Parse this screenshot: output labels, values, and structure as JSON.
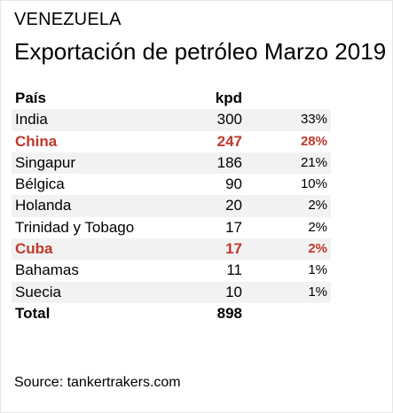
{
  "header": {
    "country": "VENEZUELA",
    "title": "Exportación de petróleo Marzo 2019"
  },
  "table": {
    "columns": [
      "País",
      "kpd",
      ""
    ],
    "rows": [
      {
        "country": "India",
        "kpd": "300",
        "share": "33%",
        "highlight": false
      },
      {
        "country": "China",
        "kpd": "247",
        "share": "28%",
        "highlight": true
      },
      {
        "country": "Singapur",
        "kpd": "186",
        "share": "21%",
        "highlight": false
      },
      {
        "country": "Bélgica",
        "kpd": "90",
        "share": "10%",
        "highlight": false
      },
      {
        "country": "Holanda",
        "kpd": "20",
        "share": "2%",
        "highlight": false
      },
      {
        "country": "Trinidad y Tobago",
        "kpd": "17",
        "share": "2%",
        "highlight": false
      },
      {
        "country": "Cuba",
        "kpd": "17",
        "share": "2%",
        "highlight": true
      },
      {
        "country": "Bahamas",
        "kpd": "11",
        "share": "1%",
        "highlight": false
      },
      {
        "country": "Suecia",
        "kpd": "10",
        "share": "1%",
        "highlight": false
      }
    ],
    "total": {
      "label": "Total",
      "kpd": "898"
    }
  },
  "footer": {
    "source": "Source: tankertrakers.com"
  },
  "colors": {
    "highlight": "#c0392b",
    "stripe": "#f2f2f2",
    "text": "#000000"
  }
}
